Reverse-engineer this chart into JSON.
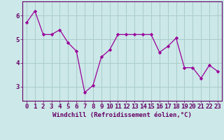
{
  "x": [
    0,
    1,
    2,
    3,
    4,
    5,
    6,
    7,
    8,
    9,
    10,
    11,
    12,
    13,
    14,
    15,
    16,
    17,
    18,
    19,
    20,
    21,
    22,
    23
  ],
  "y": [
    5.7,
    6.2,
    5.2,
    5.2,
    5.4,
    4.85,
    4.5,
    2.75,
    3.05,
    4.25,
    4.55,
    5.2,
    5.2,
    5.2,
    5.2,
    5.2,
    4.45,
    4.7,
    5.05,
    3.8,
    3.8,
    3.35,
    3.9,
    3.65
  ],
  "line_color": "#990099",
  "marker": "D",
  "marker_size": 2.2,
  "bg_color": "#cce8e8",
  "grid_color": "#aacccc",
  "xlabel": "Windchill (Refroidissement éolien,°C)",
  "xlabel_fontsize": 6.5,
  "ylabel_ticks": [
    3,
    4,
    5,
    6
  ],
  "xtick_labels": [
    "0",
    "1",
    "2",
    "3",
    "4",
    "5",
    "6",
    "7",
    "8",
    "9",
    "10",
    "11",
    "12",
    "13",
    "14",
    "15",
    "16",
    "17",
    "18",
    "19",
    "20",
    "21",
    "22",
    "23"
  ],
  "ylim": [
    2.4,
    6.6
  ],
  "xlim": [
    -0.5,
    23.5
  ],
  "tick_fontsize": 6.5,
  "label_color": "#660066",
  "spine_color": "#660066"
}
